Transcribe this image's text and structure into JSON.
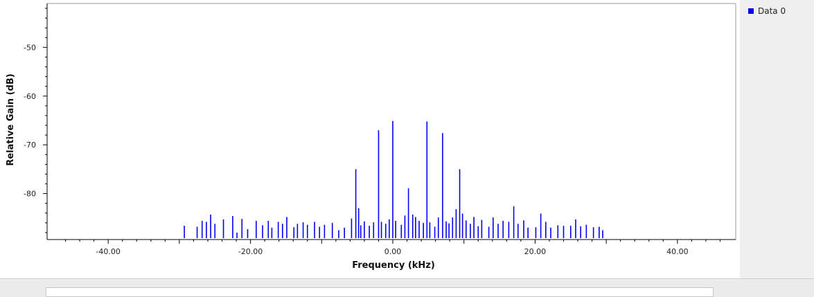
{
  "colors": {
    "series": "#0000ee",
    "axis": "#000000"
  },
  "legend": {
    "label": "Data 0"
  },
  "chart_data": {
    "type": "line",
    "xlabel": "Frequency (kHz)",
    "ylabel": "Relative Gain (dB)",
    "xlim": [
      -48,
      48
    ],
    "ylim": [
      -89,
      -41
    ],
    "x_ticks": [
      -40,
      -20,
      0,
      20,
      40
    ],
    "x_tick_labels": [
      "-40.00",
      "-20.00",
      "0.00",
      "20.00",
      "40.00"
    ],
    "y_ticks": [
      -50,
      -60,
      -70,
      -80
    ],
    "y_tick_labels": [
      "-50",
      "-60",
      "-70",
      "-80"
    ],
    "grid": false,
    "legend_position": "top-right",
    "series": [
      {
        "name": "Data 0",
        "x": [
          -29.3,
          -27.5,
          -26.8,
          -26.2,
          -25.6,
          -25.0,
          -23.8,
          -22.5,
          -21.9,
          -21.2,
          -20.4,
          -19.2,
          -18.3,
          -17.5,
          -17.0,
          -16.1,
          -15.5,
          -14.9,
          -13.9,
          -13.4,
          -12.6,
          -12.0,
          -11.0,
          -10.3,
          -9.6,
          -8.5,
          -7.6,
          -6.8,
          -5.8,
          -5.2,
          -4.8,
          -4.5,
          -4.0,
          -3.3,
          -2.7,
          -2.0,
          -1.6,
          -1.0,
          -0.5,
          0.0,
          0.4,
          1.2,
          1.7,
          2.2,
          2.8,
          3.2,
          3.7,
          4.3,
          4.8,
          5.2,
          5.9,
          6.4,
          7.0,
          7.5,
          7.9,
          8.4,
          8.9,
          9.4,
          9.8,
          10.3,
          10.9,
          11.4,
          12.0,
          12.5,
          13.5,
          14.1,
          14.8,
          15.5,
          16.3,
          17.0,
          17.6,
          18.4,
          19.0,
          20.1,
          20.8,
          21.5,
          22.2,
          23.2,
          24.0,
          25.0,
          25.7,
          26.4,
          27.2,
          28.2,
          29.0,
          29.5
        ],
        "y": [
          -86.6,
          -86.8,
          -85.6,
          -85.8,
          -84.3,
          -86.2,
          -85.3,
          -84.6,
          -88.0,
          -85.2,
          -87.3,
          -85.6,
          -86.5,
          -85.6,
          -87.0,
          -85.8,
          -86.2,
          -84.8,
          -86.9,
          -86.2,
          -85.9,
          -86.4,
          -85.8,
          -86.8,
          -86.4,
          -86.0,
          -87.5,
          -87.0,
          -85.1,
          -75.0,
          -83.0,
          -86.5,
          -85.7,
          -86.6,
          -85.9,
          -67.0,
          -85.8,
          -86.2,
          -85.3,
          -65.1,
          -85.6,
          -86.4,
          -84.5,
          -78.9,
          -84.3,
          -84.8,
          -85.6,
          -86.0,
          -65.2,
          -85.9,
          -86.8,
          -84.9,
          -67.6,
          -85.7,
          -86.1,
          -84.9,
          -83.2,
          -75.0,
          -84.1,
          -85.5,
          -86.2,
          -84.8,
          -86.7,
          -85.4,
          -86.8,
          -84.9,
          -86.2,
          -85.6,
          -85.8,
          -82.6,
          -86.2,
          -85.5,
          -87.0,
          -86.9,
          -84.1,
          -85.8,
          -87.0,
          -86.5,
          -86.6,
          -86.6,
          -85.3,
          -86.7,
          -86.4,
          -86.9,
          -86.8,
          -87.5
        ]
      }
    ]
  }
}
